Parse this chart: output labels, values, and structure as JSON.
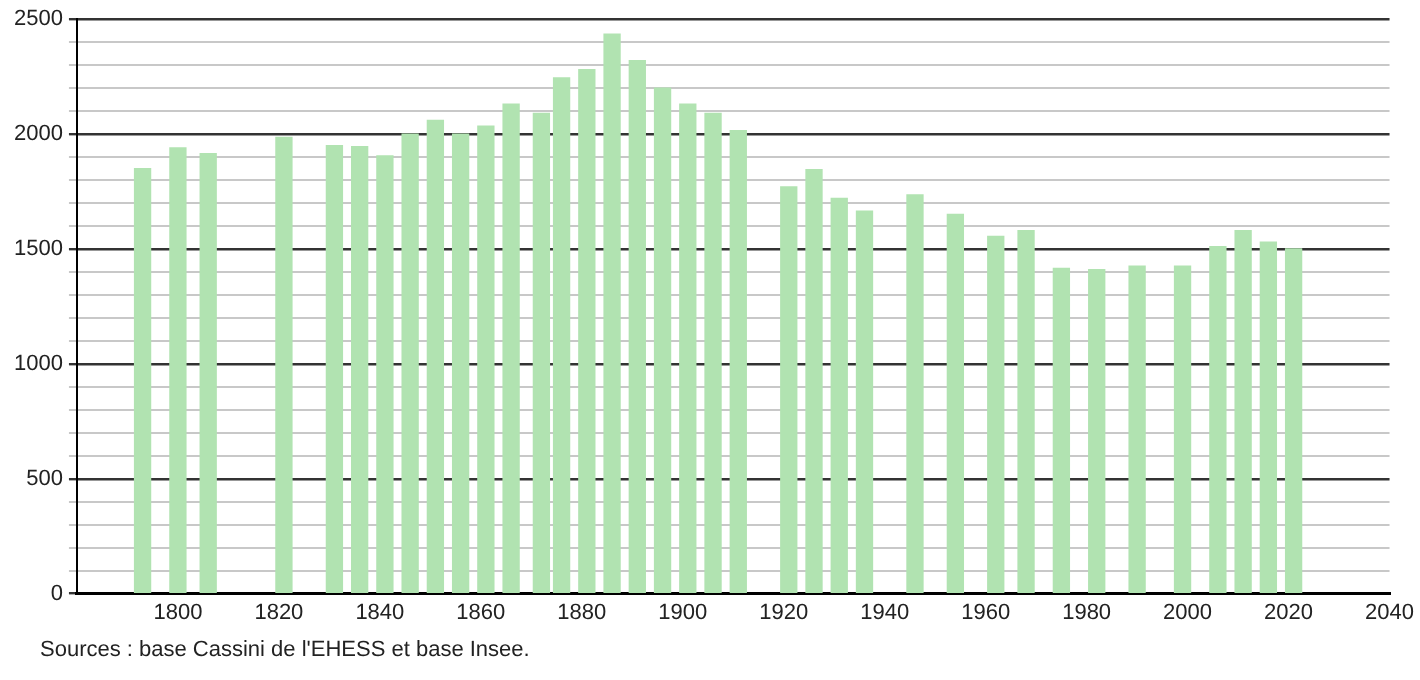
{
  "chart_data": {
    "type": "bar",
    "x": [
      1793,
      1800,
      1806,
      1821,
      1831,
      1836,
      1841,
      1846,
      1851,
      1856,
      1861,
      1866,
      1872,
      1876,
      1881,
      1886,
      1891,
      1896,
      1901,
      1906,
      1911,
      1921,
      1926,
      1931,
      1936,
      1946,
      1954,
      1962,
      1968,
      1975,
      1982,
      1990,
      1999,
      2006,
      2011,
      2016,
      2021
    ],
    "values": [
      1850,
      1940,
      1915,
      1985,
      1950,
      1945,
      1905,
      2000,
      2060,
      2000,
      2035,
      2130,
      2090,
      2245,
      2280,
      2435,
      2320,
      2200,
      2130,
      2090,
      2015,
      1770,
      1845,
      1720,
      1665,
      1735,
      1650,
      1555,
      1580,
      1415,
      1410,
      1425,
      1425,
      1510,
      1580,
      1530,
      1500
    ],
    "color": "#b1e3b1",
    "xlim": [
      1780,
      2040
    ],
    "xticks": [
      1800,
      1820,
      1840,
      1860,
      1880,
      1900,
      1920,
      1940,
      1960,
      1980,
      2000,
      2020,
      2040
    ],
    "ylim": [
      0,
      2500
    ],
    "yticks": [
      0,
      {
        "value": 100,
        "label": null
      },
      {
        "value": 200,
        "label": null
      },
      {
        "value": 300,
        "label": null
      },
      {
        "value": 400,
        "label": null
      },
      500,
      {
        "value": 600,
        "label": null
      },
      {
        "value": 700,
        "label": null
      },
      {
        "value": 800,
        "label": null
      },
      {
        "value": 900,
        "label": null
      },
      1000,
      {
        "value": 1100,
        "label": null
      },
      {
        "value": 1200,
        "label": null
      },
      {
        "value": 1300,
        "label": null
      },
      {
        "value": 1400,
        "label": null
      },
      1500,
      {
        "value": 1600,
        "label": null
      },
      {
        "value": 1700,
        "label": null
      },
      {
        "value": 1800,
        "label": null
      },
      {
        "value": 1900,
        "label": null
      },
      2000,
      {
        "value": 2100,
        "label": null
      },
      {
        "value": 2200,
        "label": null
      },
      {
        "value": 2300,
        "label": null
      },
      {
        "value": 2400,
        "label": null
      },
      2500
    ],
    "grid": "y",
    "annotations": [
      "Sources : base Cassini de l'EHESS et base Insee."
    ]
  }
}
